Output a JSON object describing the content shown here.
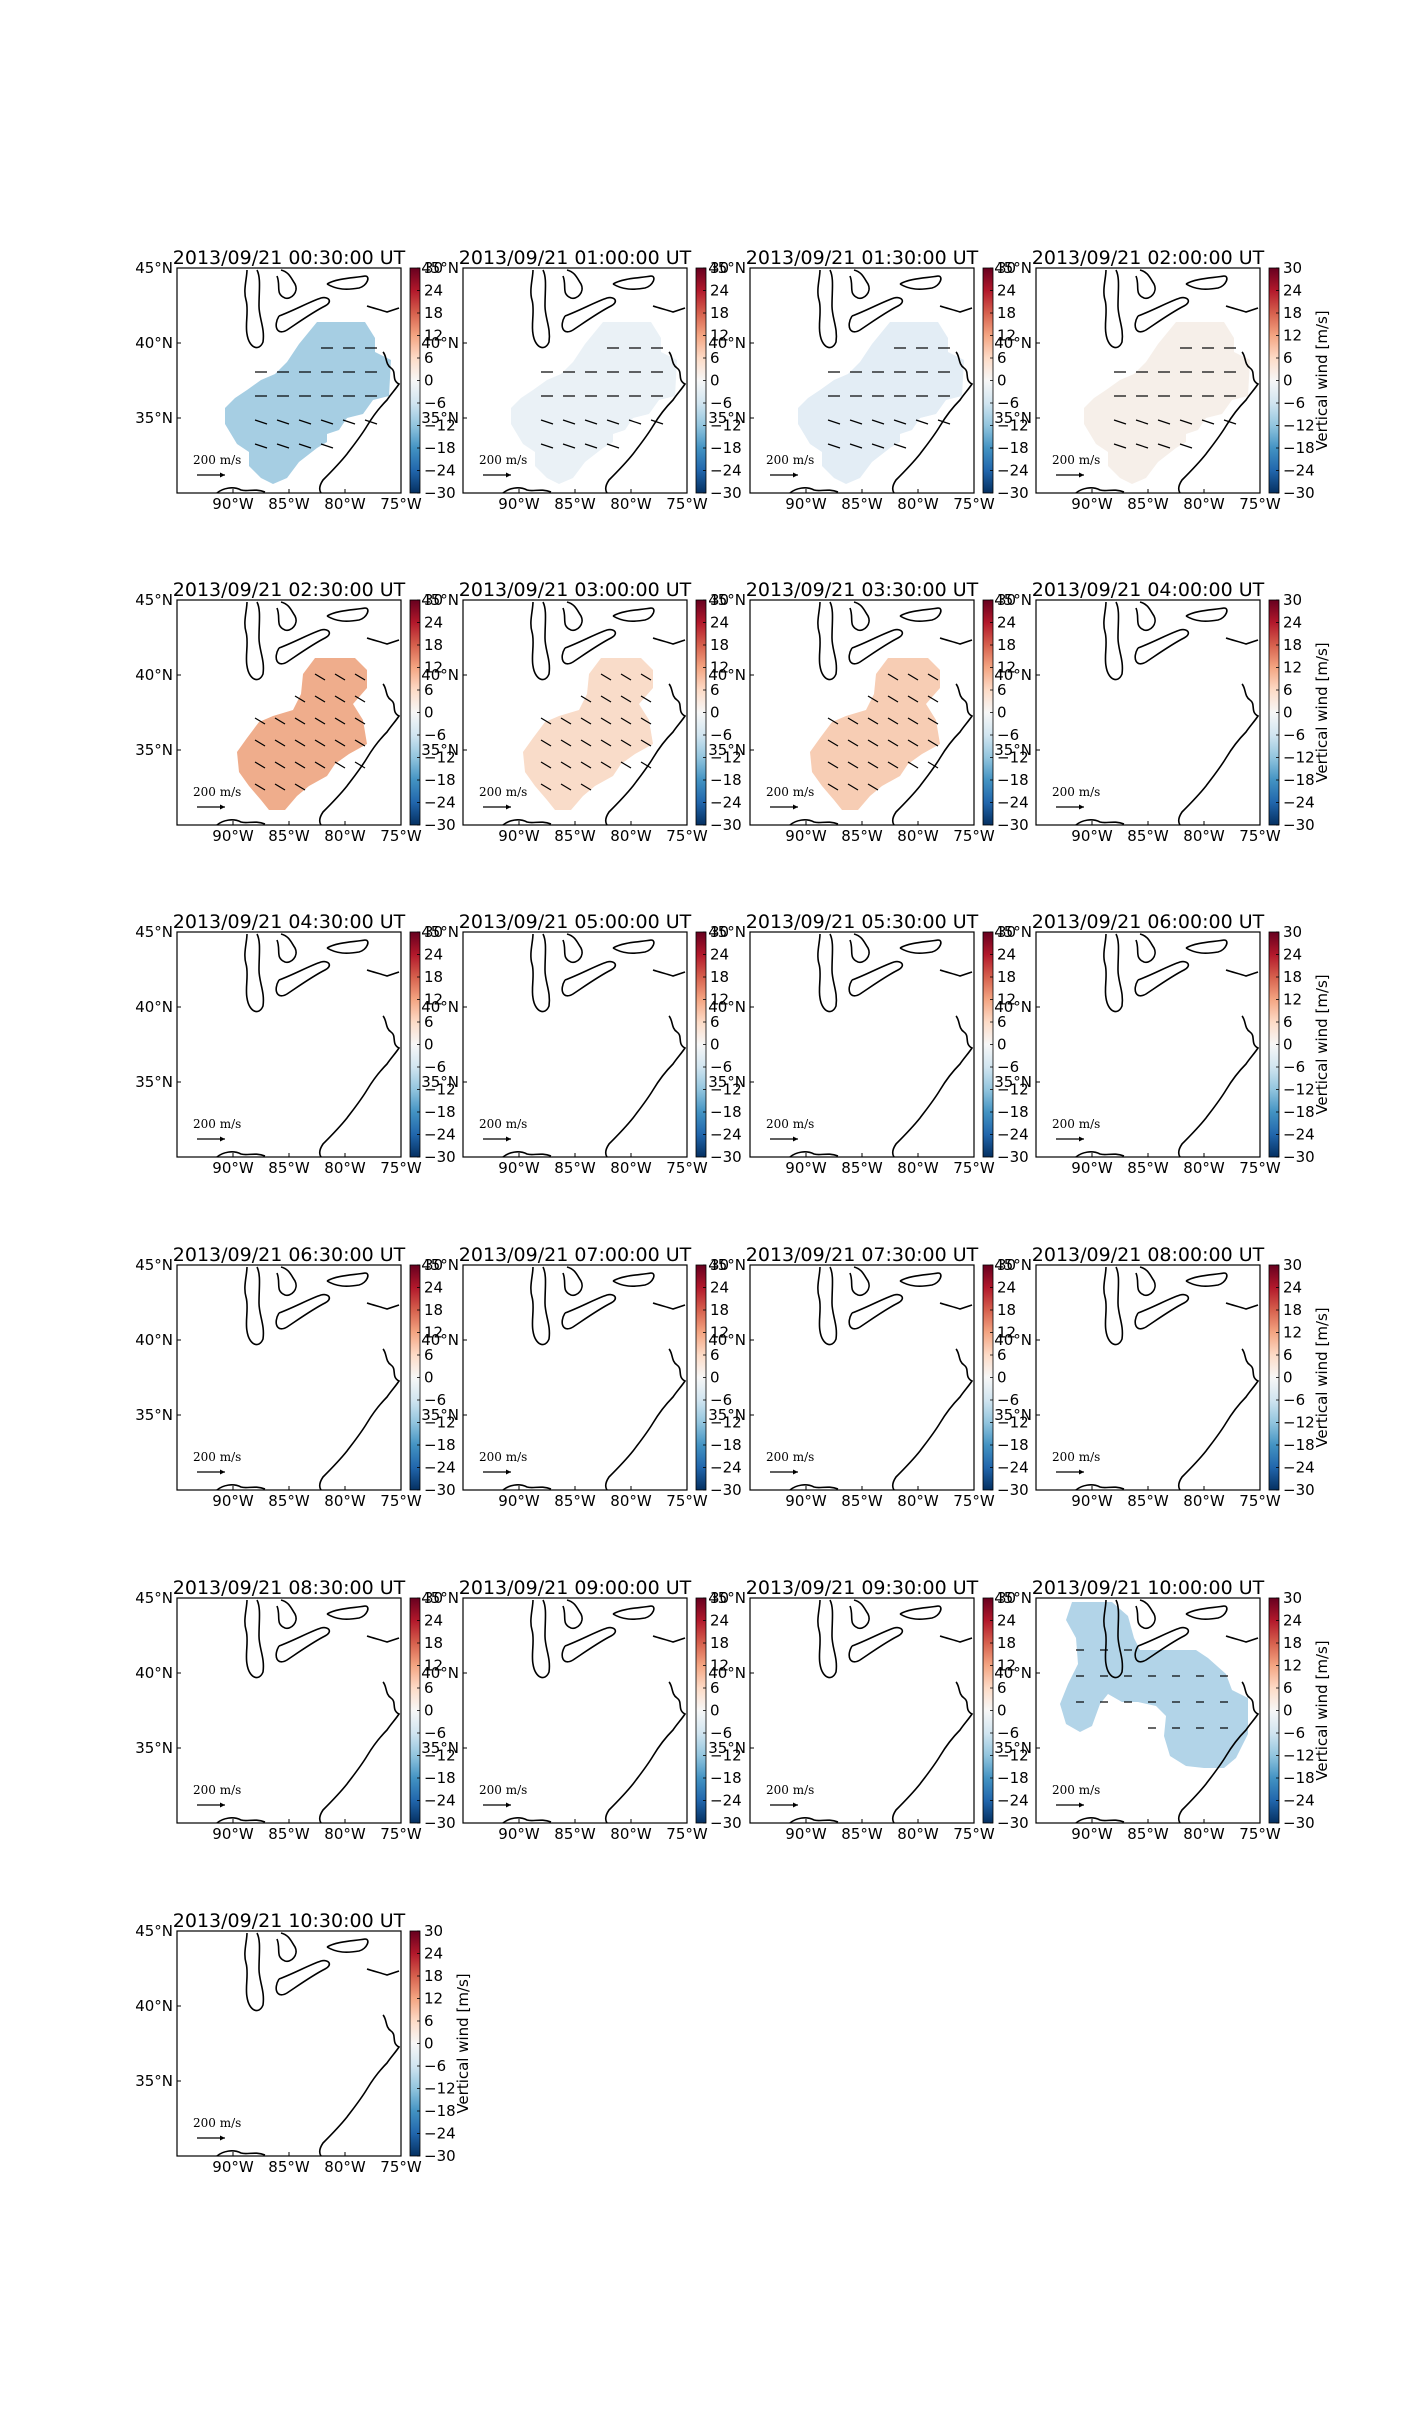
{
  "chart_data": {
    "type": "heatmap",
    "layout": {
      "rows": 6,
      "cols": 4
    },
    "region": {
      "lon_range": [
        -95,
        -75
      ],
      "lat_range": [
        30,
        45
      ]
    },
    "xticks": [
      "90°W",
      "85°W",
      "80°W",
      "75°W"
    ],
    "xtick_values": [
      -90,
      -85,
      -80,
      -75
    ],
    "yticks": [
      "45°N",
      "40°N",
      "35°N"
    ],
    "ytick_values": [
      45,
      40,
      35
    ],
    "colorbar": {
      "label": "Vertical wind [m/s]",
      "range": [
        -30,
        30
      ],
      "ticks": [
        "30",
        "24",
        "18",
        "12",
        "6",
        "0",
        "−6",
        "−12",
        "−18",
        "−24",
        "−30"
      ],
      "colormap": "RdBu_r"
    },
    "reference_arrow": {
      "value": "200",
      "unit": "m/s"
    },
    "panels": [
      {
        "title": "2013/09/21 00:30:00 UT",
        "fill_color": "#a6cee3",
        "region_shape": "blob_a",
        "vertical_wind": -7
      },
      {
        "title": "2013/09/21 01:00:00 UT",
        "fill_color": "#eaf1f6",
        "region_shape": "blob_a",
        "vertical_wind": -2
      },
      {
        "title": "2013/09/21 01:30:00 UT",
        "fill_color": "#e3edf5",
        "region_shape": "blob_a",
        "vertical_wind": -2
      },
      {
        "title": "2013/09/21 02:00:00 UT",
        "fill_color": "#f6efe9",
        "region_shape": "blob_a",
        "vertical_wind": 1
      },
      {
        "title": "2013/09/21 02:30:00 UT",
        "fill_color": "#efad8c",
        "region_shape": "blob_b",
        "vertical_wind": 9
      },
      {
        "title": "2013/09/21 03:00:00 UT",
        "fill_color": "#f9dcc9",
        "region_shape": "blob_b",
        "vertical_wind": 4
      },
      {
        "title": "2013/09/21 03:30:00 UT",
        "fill_color": "#f7cdb4",
        "region_shape": "blob_b",
        "vertical_wind": 5
      },
      {
        "title": "2013/09/21 04:00:00 UT",
        "fill_color": null,
        "region_shape": "none",
        "vertical_wind": null
      },
      {
        "title": "2013/09/21 04:30:00 UT",
        "fill_color": null,
        "region_shape": "none",
        "vertical_wind": null
      },
      {
        "title": "2013/09/21 05:00:00 UT",
        "fill_color": null,
        "region_shape": "none",
        "vertical_wind": null
      },
      {
        "title": "2013/09/21 05:30:00 UT",
        "fill_color": null,
        "region_shape": "none",
        "vertical_wind": null
      },
      {
        "title": "2013/09/21 06:00:00 UT",
        "fill_color": null,
        "region_shape": "none",
        "vertical_wind": null
      },
      {
        "title": "2013/09/21 06:30:00 UT",
        "fill_color": null,
        "region_shape": "none",
        "vertical_wind": null
      },
      {
        "title": "2013/09/21 07:00:00 UT",
        "fill_color": null,
        "region_shape": "none",
        "vertical_wind": null
      },
      {
        "title": "2013/09/21 07:30:00 UT",
        "fill_color": null,
        "region_shape": "none",
        "vertical_wind": null
      },
      {
        "title": "2013/09/21 08:00:00 UT",
        "fill_color": null,
        "region_shape": "none",
        "vertical_wind": null
      },
      {
        "title": "2013/09/21 08:30:00 UT",
        "fill_color": null,
        "region_shape": "none",
        "vertical_wind": null
      },
      {
        "title": "2013/09/21 09:00:00 UT",
        "fill_color": null,
        "region_shape": "none",
        "vertical_wind": null
      },
      {
        "title": "2013/09/21 09:30:00 UT",
        "fill_color": null,
        "region_shape": "none",
        "vertical_wind": null
      },
      {
        "title": "2013/09/21 10:00:00 UT",
        "fill_color": "#b2d4e8",
        "region_shape": "blob_c",
        "vertical_wind": -6
      },
      {
        "title": "2013/09/21 10:30:00 UT",
        "fill_color": null,
        "region_shape": "none",
        "vertical_wind": null
      }
    ]
  }
}
